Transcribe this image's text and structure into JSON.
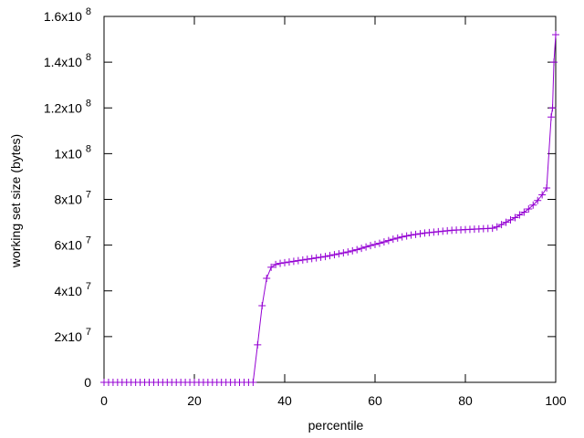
{
  "chart_data": {
    "type": "line",
    "y_label": "working set size (bytes)",
    "x_label": "percentile",
    "color": "#9400d3",
    "marker": "+",
    "x": [
      0,
      1,
      2,
      3,
      4,
      5,
      6,
      7,
      8,
      9,
      10,
      11,
      12,
      13,
      14,
      15,
      16,
      17,
      18,
      19,
      20,
      21,
      22,
      23,
      24,
      25,
      26,
      27,
      28,
      29,
      30,
      31,
      32,
      33,
      34,
      35,
      36,
      37,
      38,
      39,
      40,
      41,
      42,
      43,
      44,
      45,
      46,
      47,
      48,
      49,
      50,
      51,
      52,
      53,
      54,
      55,
      56,
      57,
      58,
      59,
      60,
      61,
      62,
      63,
      64,
      65,
      66,
      67,
      68,
      69,
      70,
      71,
      72,
      73,
      74,
      75,
      76,
      77,
      78,
      79,
      80,
      81,
      82,
      83,
      84,
      85,
      86,
      87,
      88,
      89,
      90,
      91,
      92,
      93,
      94,
      95,
      96,
      97,
      98,
      99,
      99.3,
      99.6,
      100
    ],
    "values": [
      0,
      0,
      0,
      0,
      0,
      0,
      0,
      0,
      0,
      0,
      0,
      0,
      0,
      0,
      0,
      0,
      0,
      0,
      0,
      0,
      0,
      0,
      0,
      0,
      0,
      0,
      0,
      0,
      0,
      0,
      0,
      0,
      0,
      0,
      16400000,
      33500000,
      45500000,
      50300000,
      51500000,
      52000000,
      52300000,
      52600000,
      52900000,
      53200000,
      53500000,
      53800000,
      54100000,
      54400000,
      54700000,
      55000000,
      55400000,
      55800000,
      56200000,
      56600000,
      57000000,
      57500000,
      58000000,
      58600000,
      59200000,
      59800000,
      60300000,
      60800000,
      61400000,
      62000000,
      62600000,
      63100000,
      63600000,
      64000000,
      64400000,
      64700000,
      65000000,
      65300000,
      65500000,
      65700000,
      65900000,
      66100000,
      66300000,
      66500000,
      66600000,
      66700000,
      66800000,
      66900000,
      67000000,
      67100000,
      67200000,
      67300000,
      67400000,
      68000000,
      69000000,
      70000000,
      71000000,
      72000000,
      73200000,
      74400000,
      75800000,
      77500000,
      79500000,
      82000000,
      85000000,
      116000000,
      120000000,
      140000000,
      152000000
    ],
    "xlim": [
      0,
      100
    ],
    "xticks": [
      0,
      20,
      40,
      60,
      80,
      100
    ],
    "ylim": [
      0,
      160000000
    ],
    "yticks": [
      0,
      {
        "value": 20000000,
        "label": "2x10",
        "exponent": "7"
      },
      {
        "value": 40000000,
        "label": "4x10",
        "exponent": "7"
      },
      {
        "value": 60000000,
        "label": "6x10",
        "exponent": "7"
      },
      {
        "value": 80000000,
        "label": "8x10",
        "exponent": "7"
      },
      {
        "value": 100000000,
        "label": "1x10",
        "exponent": "8"
      },
      {
        "value": 120000000,
        "label": "1.2x10",
        "exponent": "8"
      },
      {
        "value": 140000000,
        "label": "1.4x10",
        "exponent": "8"
      },
      {
        "value": 160000000,
        "label": "1.6x10",
        "exponent": "8"
      }
    ],
    "grid": false
  }
}
